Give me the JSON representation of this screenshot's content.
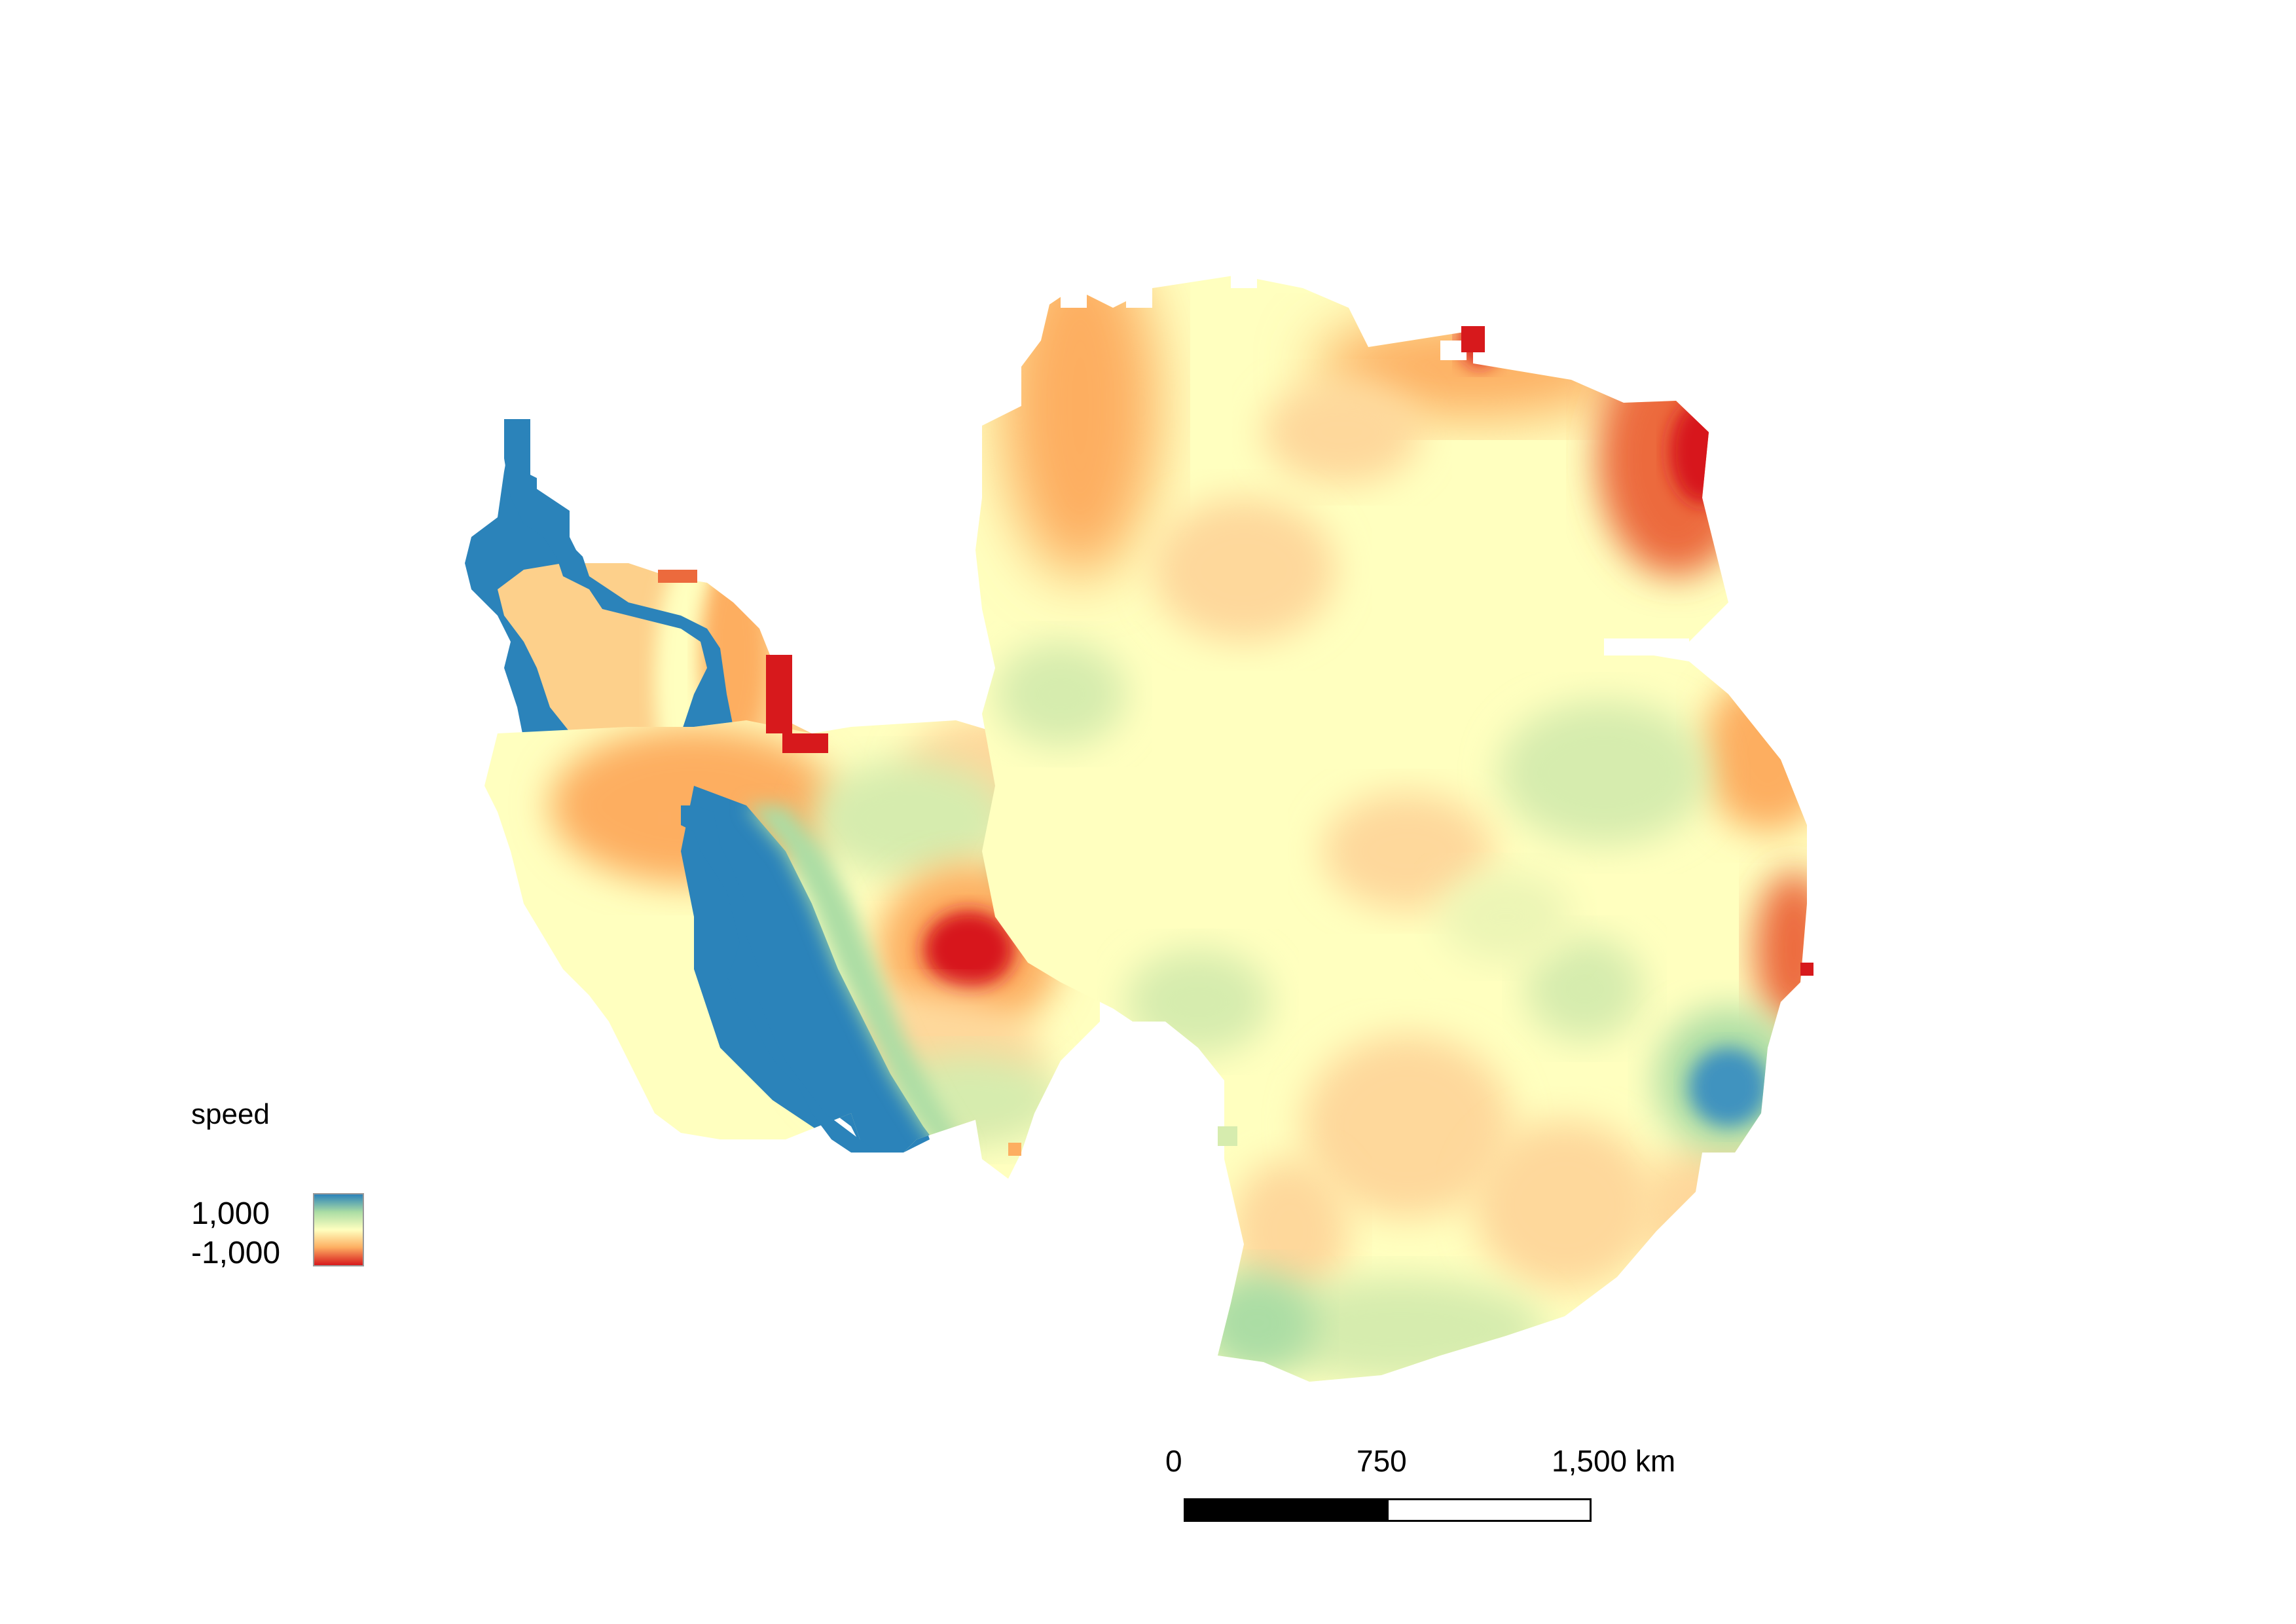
{
  "legend": {
    "title": "speed",
    "max_label": "1,000",
    "min_label": "-1,000",
    "ramp_colors": [
      "#2b83ba",
      "#abdda4",
      "#ffffbf",
      "#fdae61",
      "#d7191c"
    ]
  },
  "scalebar": {
    "labels": [
      "0",
      "750",
      "1,500 km"
    ]
  },
  "colors": {
    "blue": "#2b83ba",
    "teal": "#65b0b5",
    "green": "#abdda4",
    "pale_green": "#d6ecae",
    "yellow": "#ffffbf",
    "light_orange": "#fed89b",
    "orange": "#fdae61",
    "red_orange": "#ec6a3d",
    "red": "#d7191c"
  }
}
